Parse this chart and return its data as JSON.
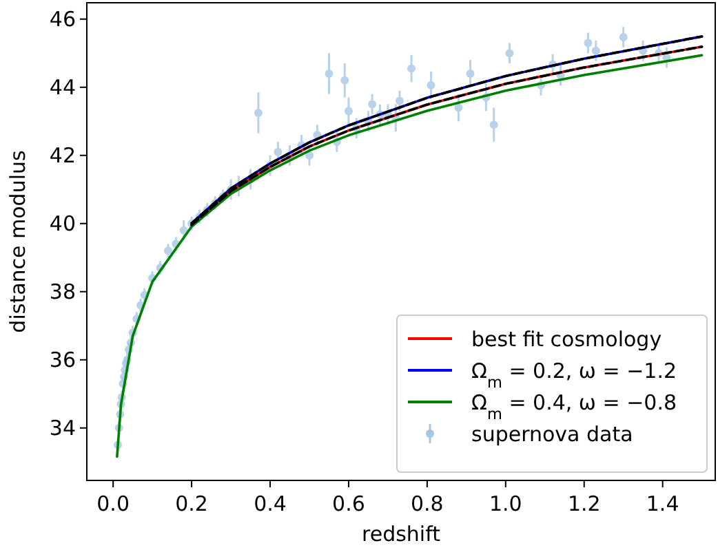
{
  "chart_data": {
    "type": "line",
    "xlabel": "redshift",
    "ylabel": "distance modulus",
    "xlim": [
      -0.067,
      1.534
    ],
    "ylim": [
      32.46,
      46.48
    ],
    "xticks": [
      {
        "value": 0,
        "label": "0.0"
      },
      {
        "value": 0.2,
        "label": "0.2"
      },
      {
        "value": 0.4,
        "label": "0.4"
      },
      {
        "value": 0.6,
        "label": "0.6"
      },
      {
        "value": 0.8,
        "label": "0.8"
      },
      {
        "value": 1,
        "label": "1.0"
      },
      {
        "value": 1.2,
        "label": "1.2"
      },
      {
        "value": 1.4,
        "label": "1.4"
      }
    ],
    "yticks": [
      34,
      36,
      38,
      40,
      42,
      44,
      46
    ],
    "grid": false,
    "legend": "bottom right",
    "series": [
      {
        "type": "scatter",
        "name": "supernova data",
        "color": "#a6c8e4",
        "marker": "circle",
        "x": [
          0.012,
          0.015,
          0.018,
          0.02,
          0.022,
          0.025,
          0.028,
          0.03,
          0.033,
          0.036,
          0.04,
          0.045,
          0.05,
          0.06,
          0.07,
          0.08,
          0.1,
          0.12,
          0.14,
          0.16,
          0.18,
          0.2,
          0.22,
          0.24,
          0.26,
          0.28,
          0.3,
          0.32,
          0.35,
          0.37,
          0.4,
          0.42,
          0.45,
          0.48,
          0.5,
          0.52,
          0.55,
          0.57,
          0.59,
          0.6,
          0.62,
          0.65,
          0.66,
          0.68,
          0.7,
          0.72,
          0.73,
          0.76,
          0.81,
          0.88,
          0.91,
          0.95,
          0.97,
          1.01,
          1.09,
          1.12,
          1.14,
          1.21,
          1.23,
          1.3,
          1.35,
          1.39,
          1.41
        ],
        "values": [
          33.5,
          34.0,
          34.4,
          34.7,
          34.9,
          35.3,
          35.5,
          35.7,
          35.9,
          36.0,
          36.3,
          36.5,
          36.8,
          37.2,
          37.6,
          37.9,
          38.4,
          38.7,
          39.2,
          39.4,
          39.8,
          40.0,
          40.2,
          40.4,
          40.6,
          40.8,
          41.0,
          41.1,
          41.3,
          43.25,
          41.7,
          42.1,
          42.0,
          42.3,
          42.0,
          42.6,
          44.4,
          42.4,
          44.2,
          43.3,
          42.8,
          43.0,
          43.5,
          43.2,
          43.2,
          43.1,
          43.6,
          44.55,
          44.06,
          43.4,
          44.4,
          43.7,
          42.9,
          45.0,
          44.06,
          44.67,
          44.35,
          45.3,
          45.07,
          45.47,
          45.07,
          45.0,
          44.87
        ],
        "errors": [
          0.2,
          0.2,
          0.2,
          0.2,
          0.2,
          0.2,
          0.2,
          0.2,
          0.2,
          0.2,
          0.2,
          0.2,
          0.2,
          0.2,
          0.2,
          0.2,
          0.2,
          0.2,
          0.2,
          0.2,
          0.3,
          0.2,
          0.2,
          0.2,
          0.2,
          0.2,
          0.3,
          0.3,
          0.3,
          0.6,
          0.3,
          0.3,
          0.3,
          0.3,
          0.3,
          0.3,
          0.6,
          0.3,
          0.5,
          0.4,
          0.3,
          0.3,
          0.3,
          0.3,
          0.3,
          0.4,
          0.3,
          0.4,
          0.4,
          0.4,
          0.4,
          0.4,
          0.5,
          0.3,
          0.3,
          0.3,
          0.3,
          0.3,
          0.3,
          0.3,
          0.3,
          0.3,
          0.3
        ]
      },
      {
        "name": "best fit cosmology",
        "color": "#ff0000",
        "x": [
          0.2,
          0.3,
          0.4,
          0.5,
          0.6,
          0.8,
          1.0,
          1.2,
          1.5
        ],
        "values": [
          39.96,
          40.95,
          41.66,
          42.26,
          42.73,
          43.49,
          44.1,
          44.58,
          45.19
        ]
      },
      {
        "name": "Ω$_{m}$ = 0.2, ω = −1.2",
        "color": "#0000ff",
        "x": [
          0.2,
          0.3,
          0.4,
          0.5,
          0.6,
          0.8,
          1.0,
          1.2,
          1.5
        ],
        "values": [
          40.01,
          41.03,
          41.76,
          42.38,
          42.88,
          43.69,
          44.33,
          44.84,
          45.49
        ]
      },
      {
        "name": "Ω$_{m}$ = 0.4, ω = −0.8",
        "color": "#008000",
        "x": [
          0.01,
          0.02,
          0.05,
          0.1,
          0.2,
          0.3,
          0.4,
          0.5,
          0.6,
          0.8,
          1.0,
          1.2,
          1.5
        ],
        "values": [
          33.16,
          34.68,
          36.7,
          38.29,
          39.91,
          40.87,
          41.56,
          42.14,
          42.59,
          43.31,
          43.9,
          44.36,
          44.94
        ]
      },
      {
        "color": "#000000",
        "line_style": "dashed",
        "x": [
          0.2,
          0.3,
          0.4,
          0.5,
          0.6,
          0.8,
          1.0,
          1.2,
          1.5
        ],
        "values": [
          40.01,
          41.03,
          41.76,
          42.38,
          42.88,
          43.69,
          44.33,
          44.84,
          45.49
        ]
      },
      {
        "color": "#000000",
        "line_style": "dashed",
        "x": [
          0.2,
          0.3,
          0.4,
          0.5,
          0.6,
          0.8,
          1.0,
          1.2,
          1.5
        ],
        "values": [
          39.96,
          40.95,
          41.66,
          42.26,
          42.73,
          43.49,
          44.1,
          44.58,
          45.19
        ]
      }
    ]
  }
}
